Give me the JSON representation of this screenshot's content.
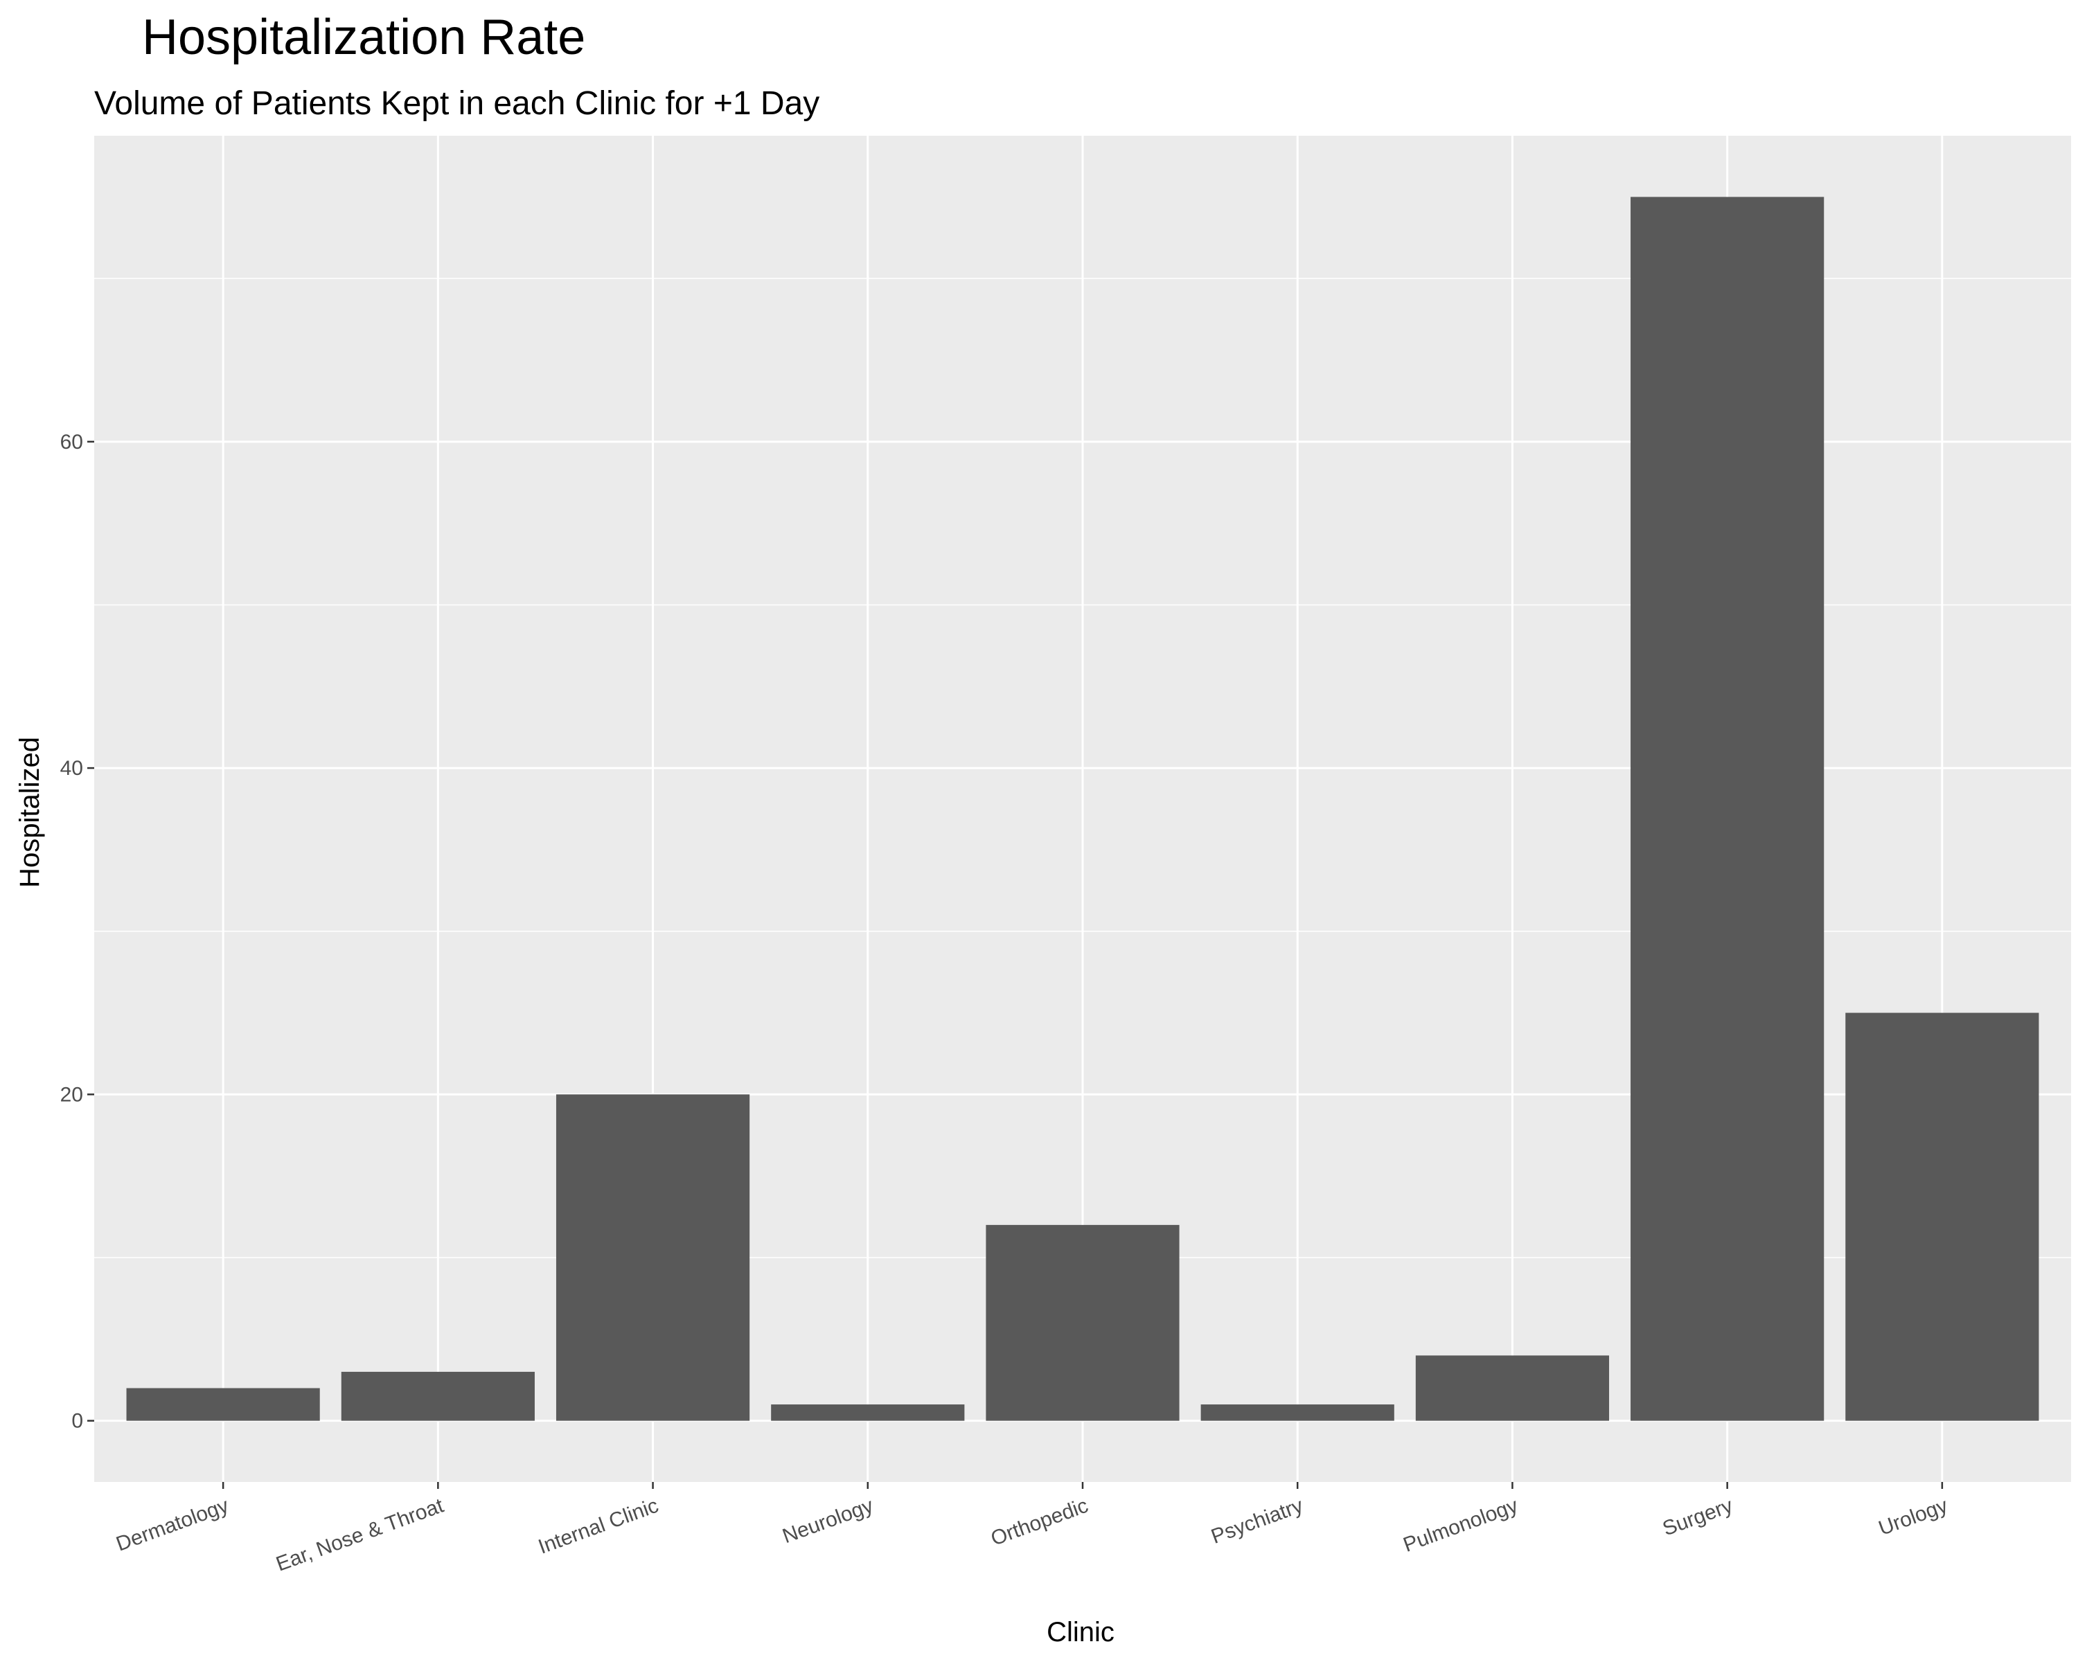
{
  "chart_data": {
    "type": "bar",
    "title": "Hospitalization Rate",
    "subtitle": "Volume of Patients Kept in each Clinic for +1 Day",
    "xlabel": "Clinic",
    "ylabel": "Hospitalized",
    "categories": [
      "Dermatology",
      "Ear, Nose & Throat",
      "Internal Clinic",
      "Neurology",
      "Orthopedic",
      "Psychiatry",
      "Pulmonology",
      "Surgery",
      "Urology"
    ],
    "values": [
      2,
      3,
      20,
      1,
      12,
      1,
      4,
      75,
      25
    ],
    "ylim": [
      -3.75,
      78.75
    ],
    "y_ticks": [
      0,
      20,
      40,
      60
    ],
    "y_tick_labels": [
      "0",
      "20",
      "40",
      "60"
    ],
    "grid": true,
    "x_tick_rotation": "angled",
    "colors": {
      "panel_background": "#ebebeb",
      "grid_major": "#ffffff",
      "bar_fill": "#595959",
      "tick_text": "#4d4d4d",
      "tick_mark": "#333333",
      "title_text": "#000000"
    }
  }
}
